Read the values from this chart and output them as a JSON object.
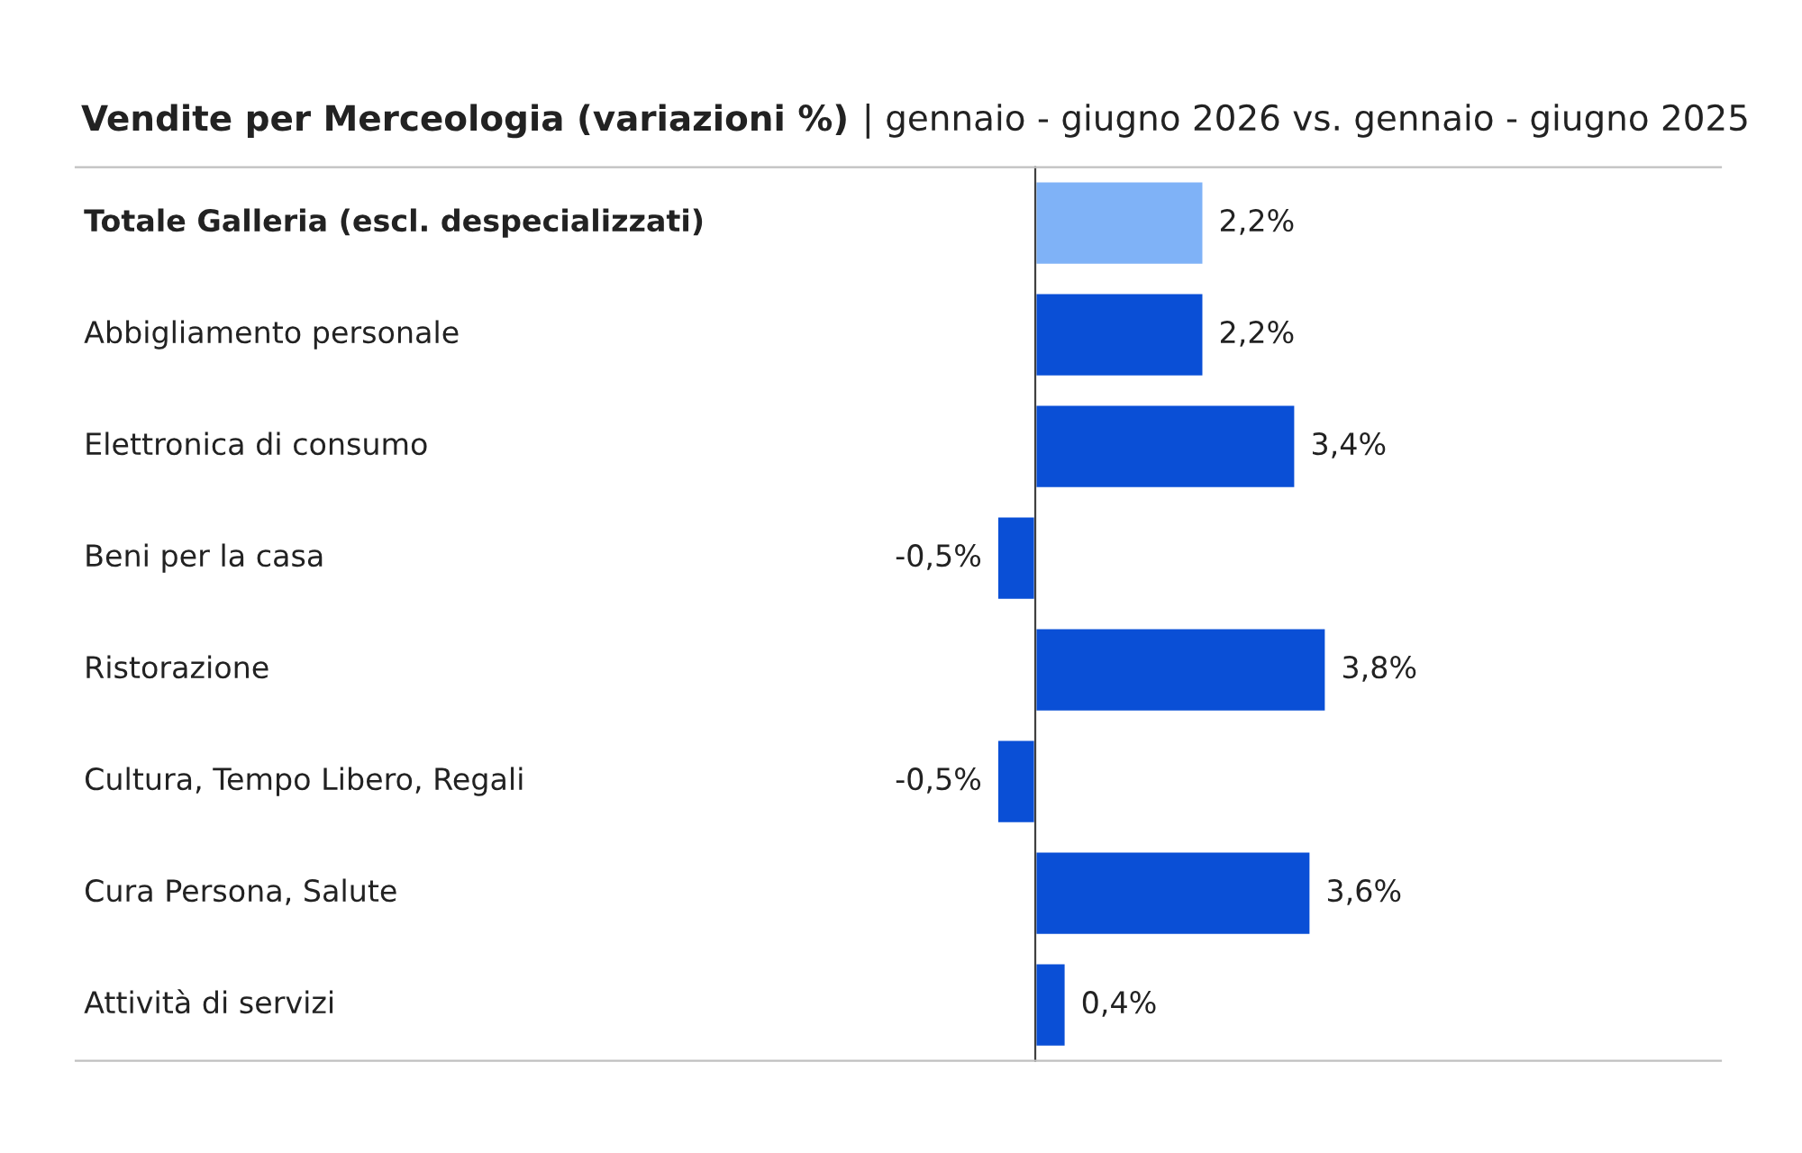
{
  "chart_data": {
    "type": "bar",
    "orientation": "horizontal",
    "title": "Vendite per Merceologia (variazioni %)",
    "subtitle": "| gennaio - giugno 2026 vs. gennaio - giugno 2025",
    "categories": [
      "Totale Galleria (escl. despecializzati)",
      "Abbigliamento personale",
      "Elettronica di consumo",
      "Beni per la casa",
      "Ristorazione",
      "Cultura, Tempo Libero, Regali",
      "Cura Persona, Salute",
      "Attività di servizi"
    ],
    "values": [
      2.2,
      2.2,
      3.4,
      -0.5,
      3.8,
      -0.5,
      3.6,
      0.4
    ],
    "colors": [
      "#7fb2f7",
      "#0a4fd6",
      "#0a4fd6",
      "#0a4fd6",
      "#0a4fd6",
      "#0a4fd6",
      "#0a4fd6",
      "#0a4fd6"
    ],
    "value_labels": [
      "2,2%",
      "2,2%",
      "3,4%",
      "-0,5%",
      "3,8%",
      "-0,5%",
      "3,6%",
      "0,4%"
    ],
    "legend": false
  }
}
